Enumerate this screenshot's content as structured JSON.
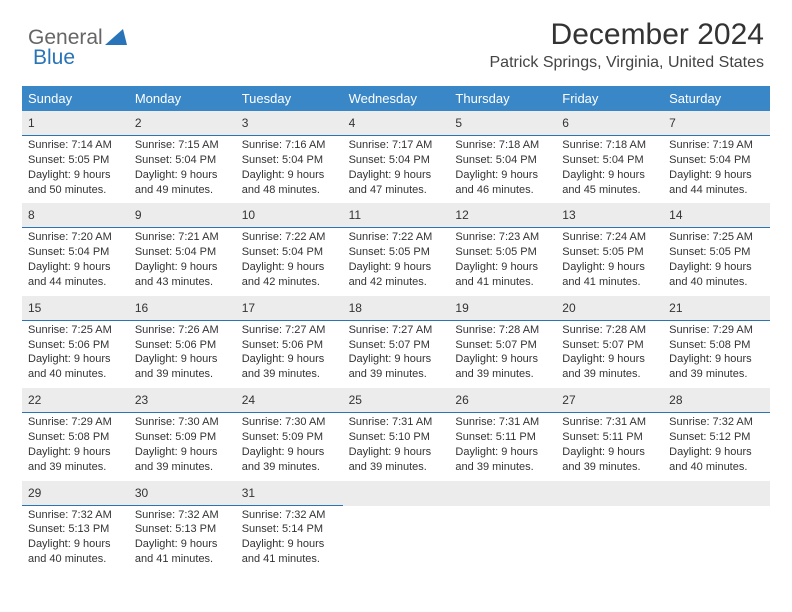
{
  "brand": {
    "first": "General",
    "second": "Blue"
  },
  "title": "December 2024",
  "location": "Patrick Springs, Virginia, United States",
  "colors": {
    "header_bg": "#3a87c8",
    "accent": "#2974b8",
    "daynum_bg": "#ececec",
    "text": "#333333",
    "logo_gray": "#666666"
  },
  "dow": [
    "Sunday",
    "Monday",
    "Tuesday",
    "Wednesday",
    "Thursday",
    "Friday",
    "Saturday"
  ],
  "weeks": [
    [
      {
        "n": "1",
        "sr": "7:14 AM",
        "ss": "5:05 PM",
        "dl": "9 hours and 50 minutes."
      },
      {
        "n": "2",
        "sr": "7:15 AM",
        "ss": "5:04 PM",
        "dl": "9 hours and 49 minutes."
      },
      {
        "n": "3",
        "sr": "7:16 AM",
        "ss": "5:04 PM",
        "dl": "9 hours and 48 minutes."
      },
      {
        "n": "4",
        "sr": "7:17 AM",
        "ss": "5:04 PM",
        "dl": "9 hours and 47 minutes."
      },
      {
        "n": "5",
        "sr": "7:18 AM",
        "ss": "5:04 PM",
        "dl": "9 hours and 46 minutes."
      },
      {
        "n": "6",
        "sr": "7:18 AM",
        "ss": "5:04 PM",
        "dl": "9 hours and 45 minutes."
      },
      {
        "n": "7",
        "sr": "7:19 AM",
        "ss": "5:04 PM",
        "dl": "9 hours and 44 minutes."
      }
    ],
    [
      {
        "n": "8",
        "sr": "7:20 AM",
        "ss": "5:04 PM",
        "dl": "9 hours and 44 minutes."
      },
      {
        "n": "9",
        "sr": "7:21 AM",
        "ss": "5:04 PM",
        "dl": "9 hours and 43 minutes."
      },
      {
        "n": "10",
        "sr": "7:22 AM",
        "ss": "5:04 PM",
        "dl": "9 hours and 42 minutes."
      },
      {
        "n": "11",
        "sr": "7:22 AM",
        "ss": "5:05 PM",
        "dl": "9 hours and 42 minutes."
      },
      {
        "n": "12",
        "sr": "7:23 AM",
        "ss": "5:05 PM",
        "dl": "9 hours and 41 minutes."
      },
      {
        "n": "13",
        "sr": "7:24 AM",
        "ss": "5:05 PM",
        "dl": "9 hours and 41 minutes."
      },
      {
        "n": "14",
        "sr": "7:25 AM",
        "ss": "5:05 PM",
        "dl": "9 hours and 40 minutes."
      }
    ],
    [
      {
        "n": "15",
        "sr": "7:25 AM",
        "ss": "5:06 PM",
        "dl": "9 hours and 40 minutes."
      },
      {
        "n": "16",
        "sr": "7:26 AM",
        "ss": "5:06 PM",
        "dl": "9 hours and 39 minutes."
      },
      {
        "n": "17",
        "sr": "7:27 AM",
        "ss": "5:06 PM",
        "dl": "9 hours and 39 minutes."
      },
      {
        "n": "18",
        "sr": "7:27 AM",
        "ss": "5:07 PM",
        "dl": "9 hours and 39 minutes."
      },
      {
        "n": "19",
        "sr": "7:28 AM",
        "ss": "5:07 PM",
        "dl": "9 hours and 39 minutes."
      },
      {
        "n": "20",
        "sr": "7:28 AM",
        "ss": "5:07 PM",
        "dl": "9 hours and 39 minutes."
      },
      {
        "n": "21",
        "sr": "7:29 AM",
        "ss": "5:08 PM",
        "dl": "9 hours and 39 minutes."
      }
    ],
    [
      {
        "n": "22",
        "sr": "7:29 AM",
        "ss": "5:08 PM",
        "dl": "9 hours and 39 minutes."
      },
      {
        "n": "23",
        "sr": "7:30 AM",
        "ss": "5:09 PM",
        "dl": "9 hours and 39 minutes."
      },
      {
        "n": "24",
        "sr": "7:30 AM",
        "ss": "5:09 PM",
        "dl": "9 hours and 39 minutes."
      },
      {
        "n": "25",
        "sr": "7:31 AM",
        "ss": "5:10 PM",
        "dl": "9 hours and 39 minutes."
      },
      {
        "n": "26",
        "sr": "7:31 AM",
        "ss": "5:11 PM",
        "dl": "9 hours and 39 minutes."
      },
      {
        "n": "27",
        "sr": "7:31 AM",
        "ss": "5:11 PM",
        "dl": "9 hours and 39 minutes."
      },
      {
        "n": "28",
        "sr": "7:32 AM",
        "ss": "5:12 PM",
        "dl": "9 hours and 40 minutes."
      }
    ],
    [
      {
        "n": "29",
        "sr": "7:32 AM",
        "ss": "5:13 PM",
        "dl": "9 hours and 40 minutes."
      },
      {
        "n": "30",
        "sr": "7:32 AM",
        "ss": "5:13 PM",
        "dl": "9 hours and 41 minutes."
      },
      {
        "n": "31",
        "sr": "7:32 AM",
        "ss": "5:14 PM",
        "dl": "9 hours and 41 minutes."
      },
      null,
      null,
      null,
      null
    ]
  ],
  "labels": {
    "sunrise": "Sunrise:",
    "sunset": "Sunset:",
    "daylight": "Daylight:"
  }
}
